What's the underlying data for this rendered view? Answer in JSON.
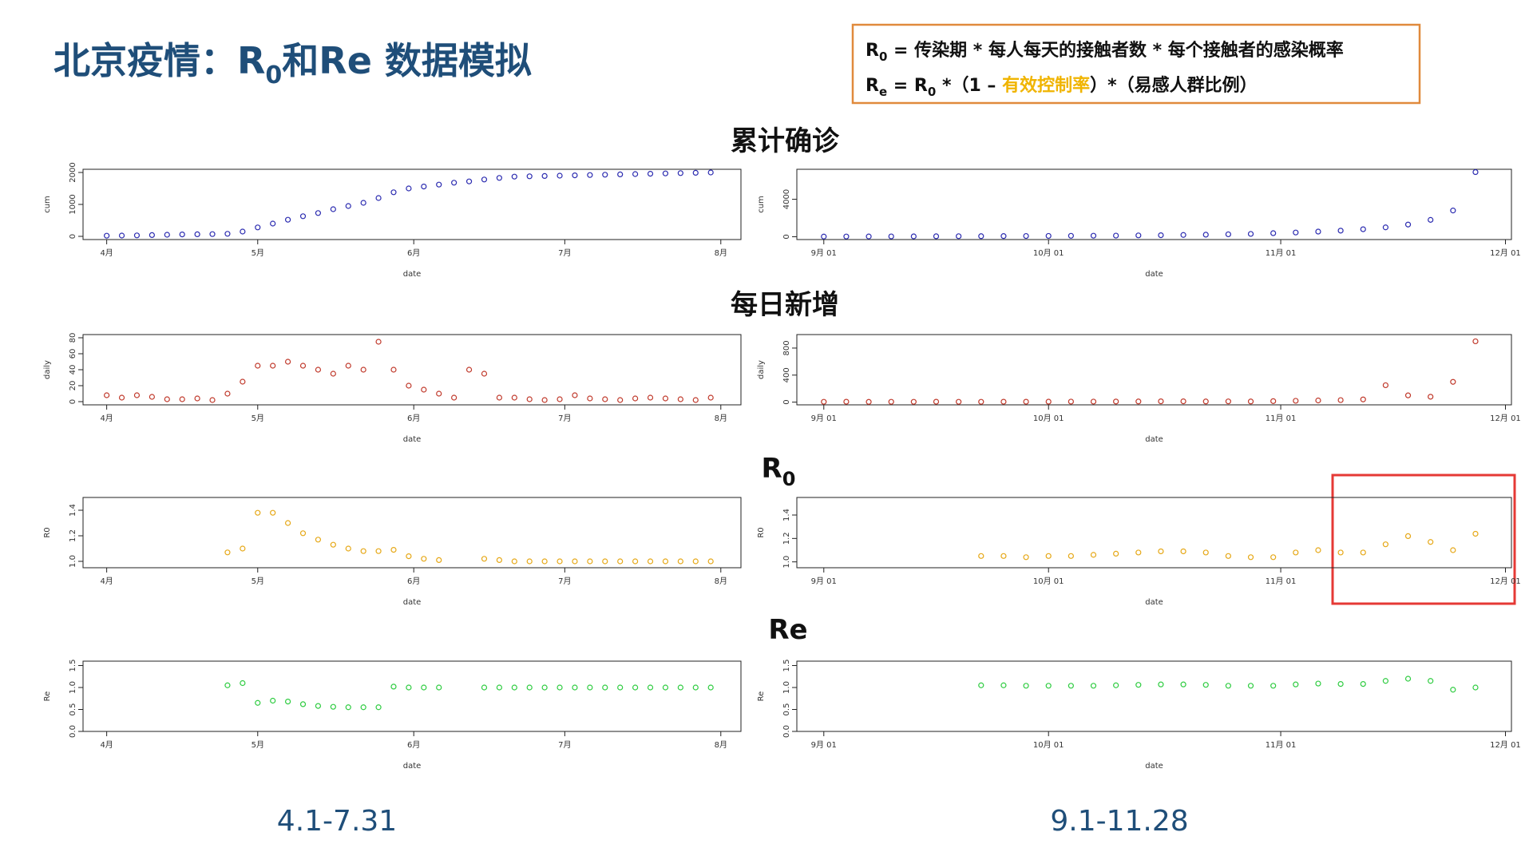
{
  "title": {
    "p1": "北京疫情：R",
    "sub": "0",
    "p2": "和Re 数据模拟"
  },
  "formula": {
    "l1": {
      "r": "R",
      "sub": "0",
      "rest": " = 传染期 * 每人每天的接触者数 * 每个接触者的感染概率"
    },
    "l2": {
      "r": "R",
      "sub": "e",
      "eq": " = R",
      "sub2": "0",
      "mid": " *（1 – ",
      "hl": "有效控制率",
      "end": "）*（易感人群比例）"
    }
  },
  "sections": [
    "累计确诊",
    "每日新增",
    {
      "r": "R",
      "sub": "0"
    },
    "Re"
  ],
  "periods": [
    "4.1-7.31",
    "9.1-11.28"
  ],
  "chart_data": [
    {
      "type": "scatter",
      "x_label": "date",
      "y_label": "cum",
      "color": "#2b2bb0",
      "x": [
        0,
        3,
        6,
        9,
        12,
        15,
        18,
        21,
        24,
        27,
        30,
        33,
        36,
        39,
        42,
        45,
        48,
        51,
        54,
        57,
        60,
        63,
        66,
        69,
        72,
        75,
        78,
        81,
        84,
        87,
        90,
        93,
        96,
        99,
        102,
        105,
        108,
        111,
        114,
        117,
        120
      ],
      "values": [
        20,
        25,
        30,
        40,
        50,
        60,
        65,
        70,
        80,
        150,
        280,
        400,
        520,
        630,
        730,
        850,
        950,
        1050,
        1200,
        1380,
        1500,
        1560,
        1620,
        1680,
        1720,
        1780,
        1830,
        1870,
        1880,
        1890,
        1900,
        1910,
        1920,
        1930,
        1940,
        1950,
        1960,
        1970,
        1980,
        1990,
        2000
      ],
      "xlim": [
        -4.7,
        126
      ],
      "xticks": [
        {
          "value": 0,
          "label": "4月"
        },
        {
          "value": 30,
          "label": "5月"
        },
        {
          "value": 61,
          "label": "6月"
        },
        {
          "value": 91,
          "label": "7月"
        },
        {
          "value": 122,
          "label": "8月"
        }
      ],
      "ylim": [
        -100,
        2100
      ],
      "yticks": [
        0,
        1000,
        2000
      ]
    },
    {
      "type": "scatter",
      "x_label": "date",
      "y_label": "cum",
      "color": "#2b2bb0",
      "x": [
        0,
        3,
        6,
        9,
        12,
        15,
        18,
        21,
        24,
        27,
        30,
        33,
        36,
        39,
        42,
        45,
        48,
        51,
        54,
        57,
        60,
        63,
        66,
        69,
        72,
        75,
        78,
        81,
        84,
        87
      ],
      "values": [
        20,
        25,
        30,
        35,
        40,
        50,
        55,
        60,
        70,
        80,
        90,
        100,
        110,
        120,
        140,
        160,
        190,
        220,
        260,
        300,
        380,
        450,
        550,
        650,
        800,
        1000,
        1300,
        1800,
        2800,
        6900
      ],
      "xlim": [
        -3.6,
        91.8
      ],
      "xticks": [
        {
          "value": 0,
          "label": "9月 01"
        },
        {
          "value": 30,
          "label": "10月 01"
        },
        {
          "value": 61,
          "label": "11月 01"
        },
        {
          "value": 91,
          "label": "12月 01"
        }
      ],
      "ylim": [
        -300,
        7200
      ],
      "yticks": [
        0,
        4000
      ]
    },
    {
      "type": "scatter",
      "x_label": "date",
      "y_label": "daily",
      "color": "#c0392b",
      "x": [
        0,
        3,
        6,
        9,
        12,
        15,
        18,
        21,
        24,
        27,
        30,
        33,
        36,
        39,
        42,
        45,
        48,
        51,
        54,
        57,
        60,
        63,
        66,
        69,
        72,
        75,
        78,
        81,
        84,
        87,
        90,
        93,
        96,
        99,
        102,
        105,
        108,
        111,
        114,
        117,
        120
      ],
      "values": [
        8,
        5,
        8,
        6,
        3,
        3,
        4,
        2,
        10,
        25,
        45,
        45,
        50,
        45,
        40,
        35,
        45,
        40,
        75,
        40,
        20,
        15,
        10,
        5,
        40,
        35,
        5,
        5,
        3,
        2,
        3,
        8,
        4,
        3,
        2,
        4,
        5,
        4,
        3,
        2,
        5
      ],
      "xlim": [
        -4.7,
        126
      ],
      "xticks": [
        {
          "value": 0,
          "label": "4月"
        },
        {
          "value": 30,
          "label": "5月"
        },
        {
          "value": 61,
          "label": "6月"
        },
        {
          "value": 91,
          "label": "7月"
        },
        {
          "value": 122,
          "label": "8月"
        }
      ],
      "ylim": [
        -4,
        84
      ],
      "yticks": [
        0,
        20,
        40,
        60,
        80
      ]
    },
    {
      "type": "scatter",
      "x_label": "date",
      "y_label": "daily",
      "color": "#c0392b",
      "x": [
        0,
        3,
        6,
        9,
        12,
        15,
        18,
        21,
        24,
        27,
        30,
        33,
        36,
        39,
        42,
        45,
        48,
        51,
        54,
        57,
        60,
        63,
        66,
        69,
        72,
        75,
        78,
        81,
        84,
        87
      ],
      "values": [
        5,
        6,
        4,
        5,
        5,
        6,
        5,
        5,
        6,
        6,
        7,
        8,
        8,
        9,
        10,
        12,
        12,
        10,
        11,
        10,
        15,
        20,
        25,
        30,
        40,
        250,
        100,
        80,
        300,
        900
      ],
      "xlim": [
        -3.6,
        91.8
      ],
      "xticks": [
        {
          "value": 0,
          "label": "9月 01"
        },
        {
          "value": 30,
          "label": "10月 01"
        },
        {
          "value": 61,
          "label": "11月 01"
        },
        {
          "value": 91,
          "label": "12月 01"
        }
      ],
      "ylim": [
        -40,
        1000
      ],
      "yticks": [
        0,
        400,
        800
      ]
    },
    {
      "type": "scatter",
      "x_label": "date",
      "y_label": "R0",
      "color": "#e6a817",
      "x": [
        0,
        3,
        6,
        9,
        12,
        15,
        18,
        21,
        24,
        27,
        30,
        33,
        36,
        39,
        42,
        45,
        48,
        51,
        54,
        57,
        60,
        63,
        66,
        69,
        72,
        75,
        78,
        81,
        84,
        87,
        90,
        93,
        96,
        99,
        102,
        105,
        108,
        111,
        114,
        117,
        120
      ],
      "values": [
        null,
        null,
        null,
        null,
        null,
        null,
        null,
        null,
        1.07,
        1.1,
        1.38,
        1.38,
        1.3,
        1.22,
        1.17,
        1.13,
        1.1,
        1.08,
        1.08,
        1.09,
        1.04,
        1.02,
        1.01,
        null,
        null,
        1.02,
        1.01,
        1,
        1,
        1,
        1,
        1,
        1,
        1,
        1,
        1,
        1,
        1,
        1,
        1,
        1
      ],
      "xlim": [
        -4.7,
        126
      ],
      "xticks": [
        {
          "value": 0,
          "label": "4月"
        },
        {
          "value": 30,
          "label": "5月"
        },
        {
          "value": 61,
          "label": "6月"
        },
        {
          "value": 91,
          "label": "7月"
        },
        {
          "value": 122,
          "label": "8月"
        }
      ],
      "ylim": [
        0.95,
        1.5
      ],
      "yticks": [
        {
          "value": 1,
          "label": "1.0"
        },
        1.2,
        1.4
      ]
    },
    {
      "type": "scatter",
      "x_label": "date",
      "y_label": "R0",
      "color": "#e6a817",
      "x": [
        0,
        3,
        6,
        9,
        12,
        15,
        18,
        21,
        24,
        27,
        30,
        33,
        36,
        39,
        42,
        45,
        48,
        51,
        54,
        57,
        60,
        63,
        66,
        69,
        72,
        75,
        78,
        81,
        84,
        87
      ],
      "values": [
        null,
        null,
        null,
        null,
        null,
        null,
        null,
        1.05,
        1.05,
        1.04,
        1.05,
        1.05,
        1.06,
        1.07,
        1.08,
        1.09,
        1.09,
        1.08,
        1.05,
        1.04,
        1.04,
        1.08,
        1.1,
        1.08,
        1.08,
        1.15,
        1.22,
        1.17,
        1.1,
        1.24
      ],
      "xlim": [
        -3.6,
        91.8
      ],
      "xticks": [
        {
          "value": 0,
          "label": "9月 01"
        },
        {
          "value": 30,
          "label": "10月 01"
        },
        {
          "value": 61,
          "label": "11月 01"
        },
        {
          "value": 91,
          "label": "12月 01"
        }
      ],
      "ylim": [
        0.95,
        1.55
      ],
      "yticks": [
        {
          "value": 1,
          "label": "1.0"
        },
        1.2,
        1.4
      ]
    },
    {
      "type": "scatter",
      "x_label": "date",
      "y_label": "Re",
      "color": "#2ecc40",
      "x": [
        0,
        3,
        6,
        9,
        12,
        15,
        18,
        21,
        24,
        27,
        30,
        33,
        36,
        39,
        42,
        45,
        48,
        51,
        54,
        57,
        60,
        63,
        66,
        69,
        72,
        75,
        78,
        81,
        84,
        87,
        90,
        93,
        96,
        99,
        102,
        105,
        108,
        111,
        114,
        117,
        120
      ],
      "values": [
        null,
        null,
        null,
        null,
        null,
        null,
        null,
        null,
        1.05,
        1.1,
        0.65,
        0.7,
        0.68,
        0.62,
        0.58,
        0.56,
        0.55,
        0.55,
        0.55,
        1.02,
        1,
        1,
        1,
        null,
        null,
        1,
        1,
        1,
        1,
        1,
        1,
        1,
        1,
        1,
        1,
        1,
        1,
        1,
        1,
        1,
        1
      ],
      "xlim": [
        -4.7,
        126
      ],
      "xticks": [
        {
          "value": 0,
          "label": "4月"
        },
        {
          "value": 30,
          "label": "5月"
        },
        {
          "value": 61,
          "label": "6月"
        },
        {
          "value": 91,
          "label": "7月"
        },
        {
          "value": 122,
          "label": "8月"
        }
      ],
      "ylim": [
        0,
        1.6
      ],
      "yticks": [
        {
          "value": 0,
          "label": "0.0"
        },
        0.5,
        {
          "value": 1,
          "label": "1.0"
        },
        1.5
      ]
    },
    {
      "type": "scatter",
      "x_label": "date",
      "y_label": "Re",
      "color": "#2ecc40",
      "x": [
        0,
        3,
        6,
        9,
        12,
        15,
        18,
        21,
        24,
        27,
        30,
        33,
        36,
        39,
        42,
        45,
        48,
        51,
        54,
        57,
        60,
        63,
        66,
        69,
        72,
        75,
        78,
        81,
        84,
        87
      ],
      "values": [
        null,
        null,
        null,
        null,
        null,
        null,
        null,
        1.05,
        1.05,
        1.04,
        1.04,
        1.04,
        1.04,
        1.05,
        1.06,
        1.07,
        1.07,
        1.06,
        1.04,
        1.04,
        1.04,
        1.07,
        1.09,
        1.08,
        1.08,
        1.15,
        1.2,
        1.15,
        0.95,
        1
      ],
      "xlim": [
        -3.6,
        91.8
      ],
      "xticks": [
        {
          "value": 0,
          "label": "9月 01"
        },
        {
          "value": 30,
          "label": "10月 01"
        },
        {
          "value": 61,
          "label": "11月 01"
        },
        {
          "value": 91,
          "label": "12月 01"
        }
      ],
      "ylim": [
        0,
        1.6
      ],
      "yticks": [
        {
          "value": 0,
          "label": "0.0"
        },
        0.5,
        {
          "value": 1,
          "label": "1.0"
        },
        1.5
      ]
    }
  ]
}
